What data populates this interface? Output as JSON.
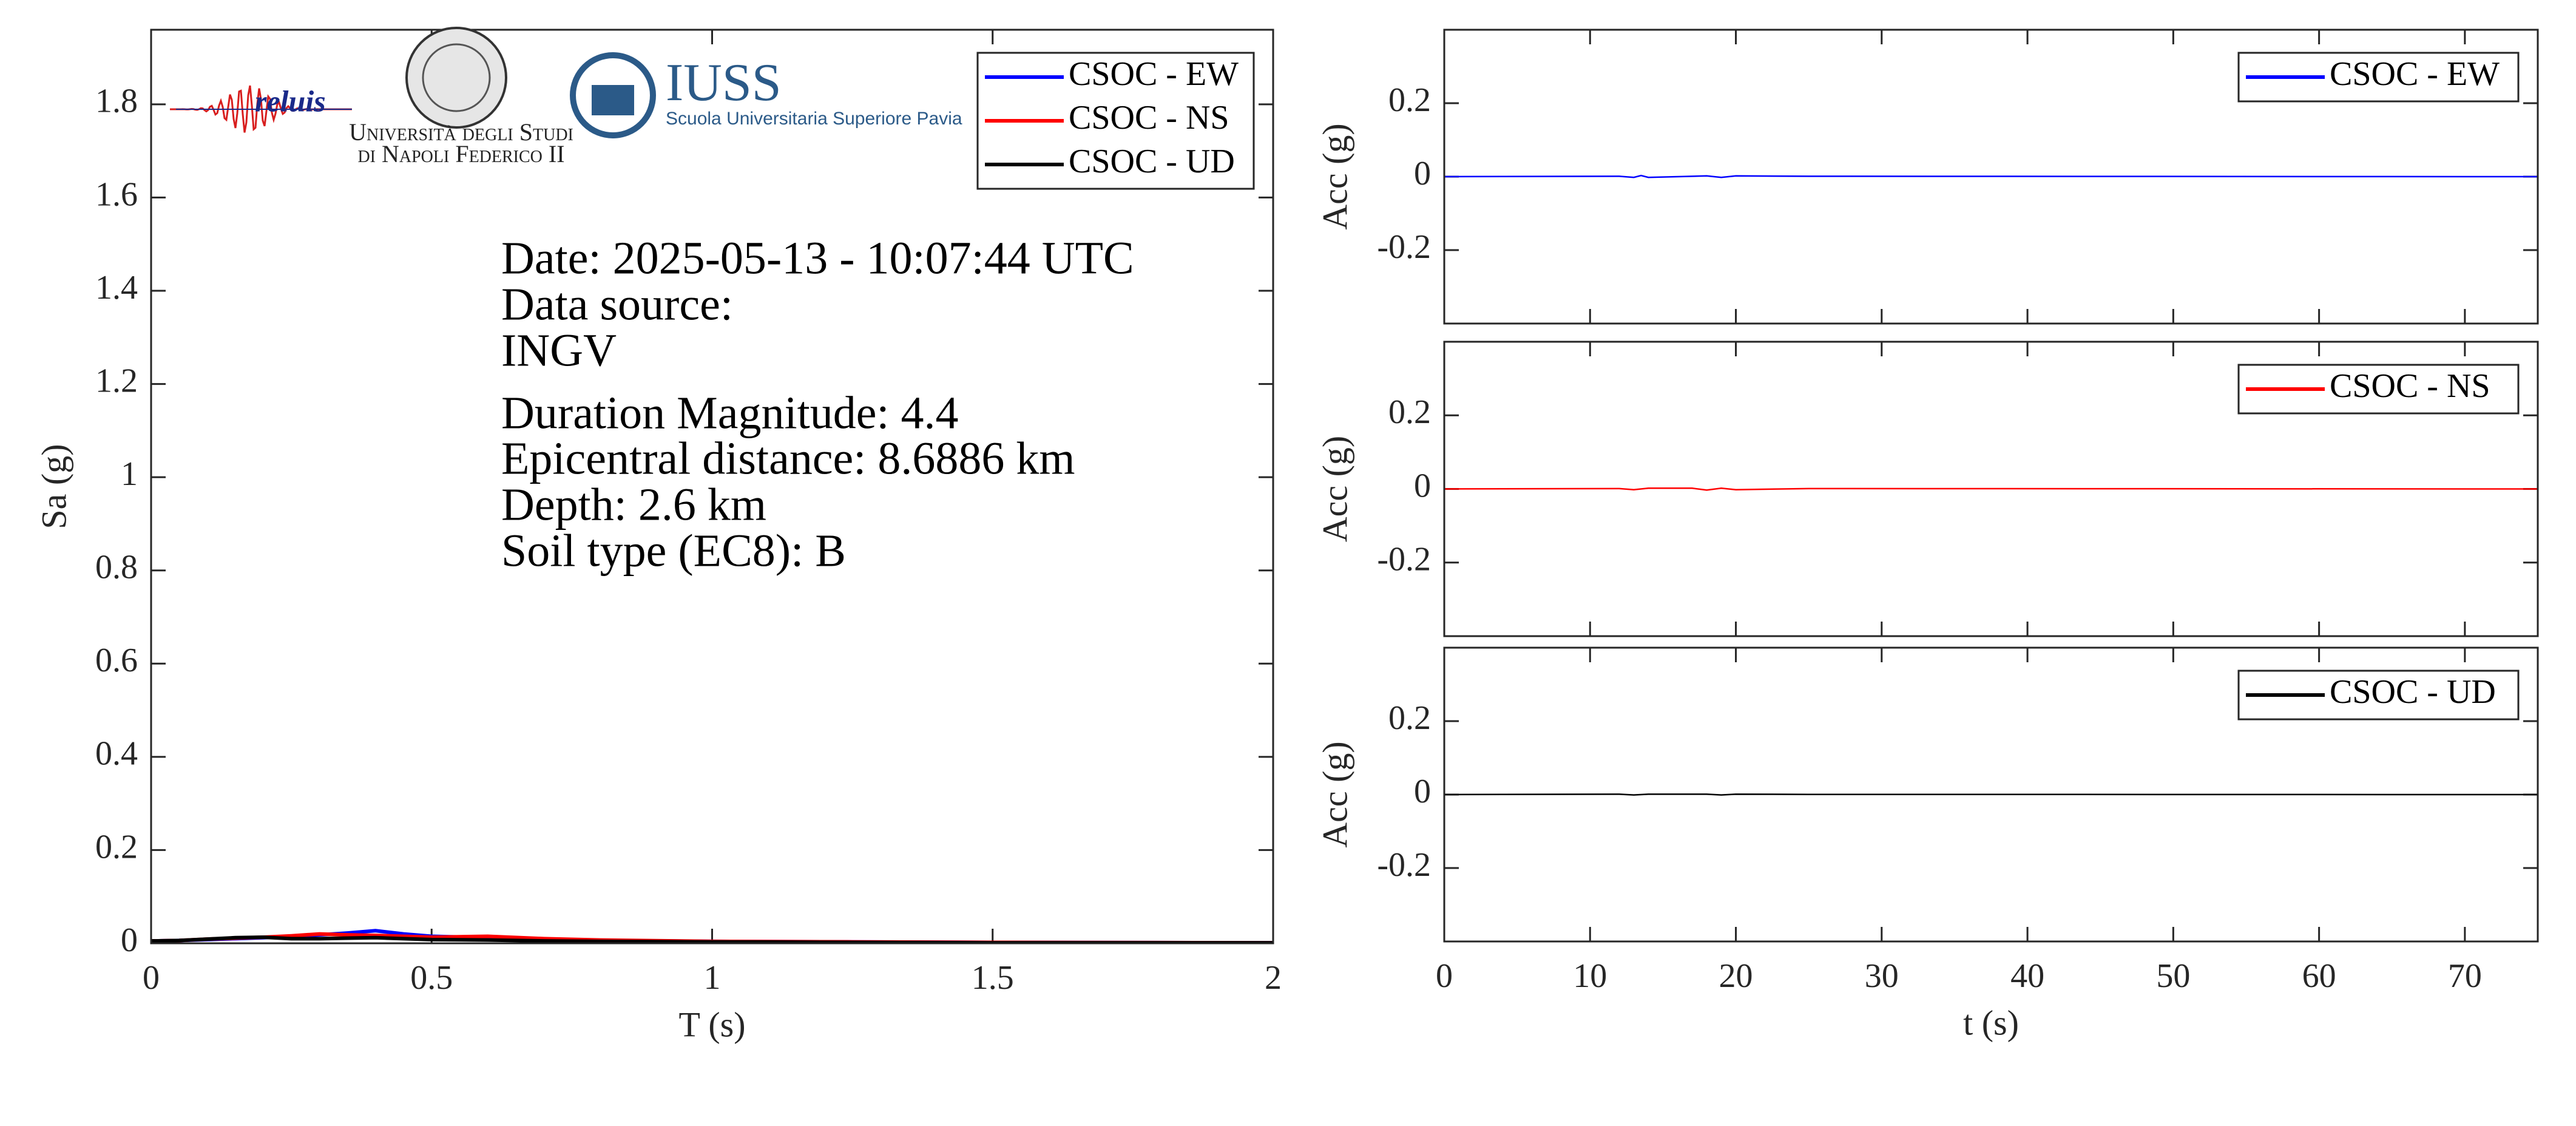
{
  "chart_data": [
    {
      "type": "line",
      "xlabel": "T (s)",
      "ylabel": "Sa (g)",
      "x": [
        0,
        0.05,
        0.1,
        0.15,
        0.2,
        0.25,
        0.3,
        0.35,
        0.4,
        0.45,
        0.5,
        0.6,
        0.7,
        0.8,
        1,
        1.25,
        1.5,
        2
      ],
      "series": [
        {
          "name": "CSOC - EW",
          "color": "#0000ff",
          "values": [
            0.005,
            0.006,
            0.008,
            0.01,
            0.012,
            0.015,
            0.018,
            0.022,
            0.027,
            0.02,
            0.015,
            0.012,
            0.008,
            0.006,
            0.004,
            0.003,
            0.002,
            0.001
          ]
        },
        {
          "name": "CSOC - NS",
          "color": "#ff0000",
          "values": [
            0.005,
            0.006,
            0.009,
            0.011,
            0.013,
            0.016,
            0.02,
            0.018,
            0.017,
            0.015,
            0.013,
            0.015,
            0.01,
            0.007,
            0.004,
            0.003,
            0.002,
            0.001
          ]
        },
        {
          "name": "CSOC - UD",
          "color": "#000000",
          "values": [
            0.005,
            0.006,
            0.009,
            0.012,
            0.013,
            0.01,
            0.01,
            0.011,
            0.012,
            0.01,
            0.008,
            0.007,
            0.005,
            0.004,
            0.003,
            0.002,
            0.001,
            0.001
          ]
        }
      ],
      "xlim": [
        0,
        2
      ],
      "xticks": [
        0,
        0.5,
        1,
        1.5,
        2
      ],
      "ylim": [
        0,
        1.96
      ],
      "yticks": [
        0,
        0.2,
        0.4,
        0.6,
        0.8,
        1,
        1.2,
        1.4,
        1.6,
        1.8
      ],
      "legend": "northeast",
      "annotations": [
        "Date: 2025-05-13 - 10:07:44 UTC",
        "Data source:",
        "INGV",
        "Duration Magnitude: 4.4",
        "Epicentral distance: 8.6886 km",
        "Depth: 2.6 km",
        "Soil type (EC8): B"
      ],
      "logos": [
        "reluis",
        "Università degli Studi",
        "di Napoli Federico II",
        "IUSS",
        "Scuola Universitaria Superiore Pavia"
      ]
    },
    {
      "type": "line",
      "ylabel": "Acc (g)",
      "x": [
        0,
        12,
        13,
        13.5,
        14,
        18,
        19,
        20,
        25,
        75
      ],
      "series": [
        {
          "name": "CSOC - EW",
          "color": "#0000ff",
          "values": [
            0,
            0.001,
            -0.002,
            0.003,
            -0.002,
            0.002,
            -0.002,
            0.002,
            0.001,
            0
          ]
        }
      ],
      "xlim": [
        0,
        75
      ],
      "xticks": [
        0,
        10,
        20,
        30,
        40,
        50,
        60,
        70
      ],
      "show_xtick_labels": false,
      "ylim": [
        -0.4,
        0.4
      ],
      "yticks": [
        -0.2,
        0,
        0.2
      ],
      "legend": "northeast"
    },
    {
      "type": "line",
      "ylabel": "Acc (g)",
      "x": [
        0,
        12,
        13,
        14,
        17,
        18,
        19,
        20,
        25,
        75
      ],
      "series": [
        {
          "name": "CSOC - NS",
          "color": "#ff0000",
          "values": [
            0,
            0.001,
            -0.002,
            0.002,
            0.002,
            -0.003,
            0.002,
            -0.002,
            0.001,
            0
          ]
        }
      ],
      "xlim": [
        0,
        75
      ],
      "xticks": [
        0,
        10,
        20,
        30,
        40,
        50,
        60,
        70
      ],
      "show_xtick_labels": false,
      "ylim": [
        -0.4,
        0.4
      ],
      "yticks": [
        -0.2,
        0,
        0.2
      ],
      "legend": "northeast"
    },
    {
      "type": "line",
      "ylabel": "Acc (g)",
      "xlabel": "t (s)",
      "x": [
        0,
        12,
        13,
        14,
        18,
        19,
        20,
        25,
        75
      ],
      "series": [
        {
          "name": "CSOC - UD",
          "color": "#000000",
          "values": [
            0,
            0.001,
            -0.001,
            0.001,
            0.001,
            -0.001,
            0.001,
            0.0005,
            0
          ]
        }
      ],
      "xlim": [
        0,
        75
      ],
      "xticks": [
        0,
        10,
        20,
        30,
        40,
        50,
        60,
        70
      ],
      "ylim": [
        -0.4,
        0.4
      ],
      "yticks": [
        -0.2,
        0,
        0.2
      ],
      "legend": "northeast"
    }
  ]
}
